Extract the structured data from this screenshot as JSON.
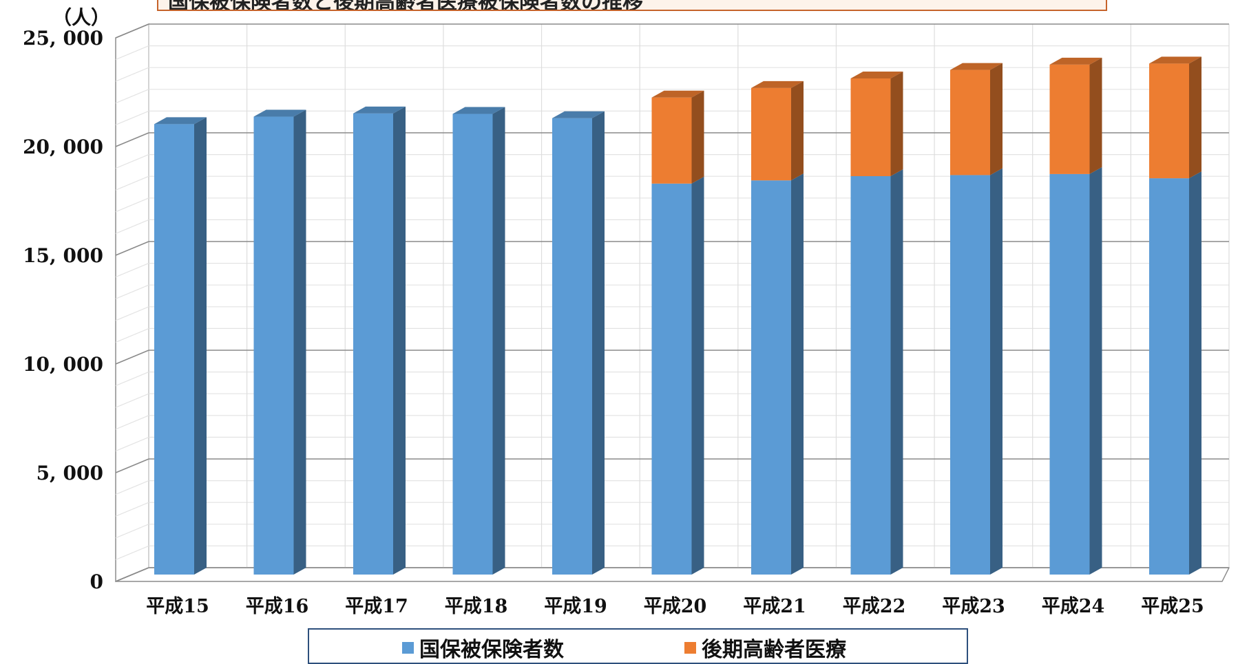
{
  "chart_data": {
    "type": "bar",
    "stacked": true,
    "title": "国保被保険者数と後期高齢者医療被保険者数の推移",
    "unit_label": "（人）",
    "categories": [
      "平成15",
      "平成16",
      "平成17",
      "平成18",
      "平成19",
      "平成20",
      "平成21",
      "平成22",
      "平成23",
      "平成24",
      "平成25"
    ],
    "series": [
      {
        "name": "国保被保険者数",
        "color": "#5b9bd5",
        "values": [
          21200,
          21550,
          21700,
          21680,
          21480,
          18400,
          18550,
          18750,
          18800,
          18850,
          18650
        ]
      },
      {
        "name": "後期高齢者医療",
        "color": "#ed7d31",
        "values": [
          0,
          0,
          0,
          0,
          0,
          4050,
          4350,
          4600,
          4950,
          5150,
          5400
        ]
      }
    ],
    "ylim": [
      0,
      25000
    ],
    "yticks": [
      0,
      5000,
      10000,
      15000,
      20000,
      25000
    ],
    "ytick_labels": [
      "0",
      "5, 000",
      "10, 000",
      "15, 000",
      "20, 000",
      "25, 000"
    ],
    "grid": true,
    "legend_position": "bottom"
  }
}
